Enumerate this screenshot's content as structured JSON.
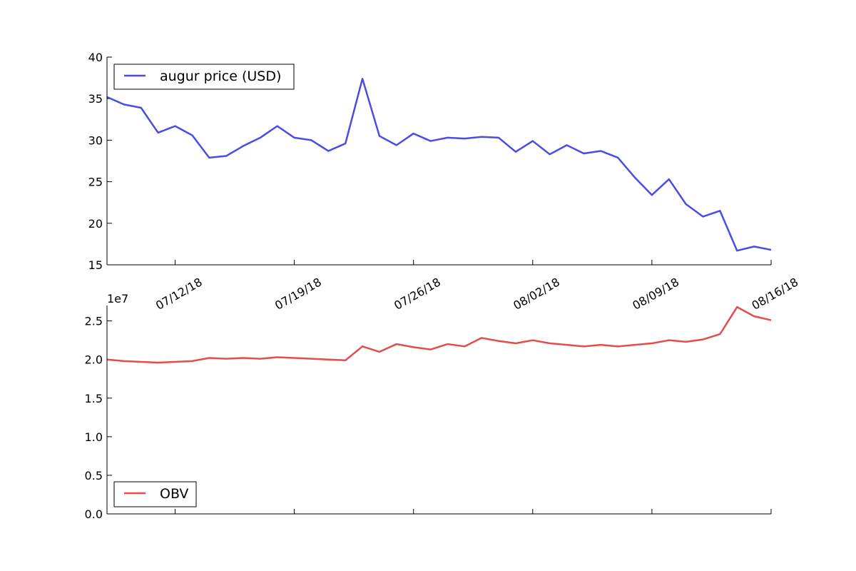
{
  "chart_data": [
    {
      "type": "line",
      "series": [
        {
          "name": "augur price (USD)",
          "color": "#4b4be8",
          "values": [
            35.2,
            34.3,
            33.9,
            30.9,
            31.7,
            30.6,
            27.9,
            28.1,
            29.3,
            30.3,
            31.7,
            30.3,
            30.0,
            28.7,
            29.6,
            37.4,
            30.5,
            29.4,
            30.8,
            29.9,
            30.3,
            30.2,
            30.4,
            30.3,
            28.6,
            29.9,
            28.3,
            29.4,
            28.4,
            28.7,
            27.9,
            25.5,
            23.4,
            25.3,
            22.3,
            20.8,
            21.5,
            16.7,
            17.2,
            16.8
          ]
        }
      ],
      "x_start_date": "07/08/18",
      "ylim": [
        15,
        40
      ],
      "yticks": [
        "15",
        "20",
        "25",
        "30",
        "35",
        "40"
      ],
      "xticks": [
        "07/12/18",
        "07/19/18",
        "07/26/18",
        "08/02/18",
        "08/09/18",
        "08/16/18"
      ],
      "legend": "top-left"
    },
    {
      "type": "line",
      "series": [
        {
          "name": "OBV",
          "color": "#e84b4b",
          "values": [
            2.0,
            1.98,
            1.97,
            1.96,
            1.97,
            1.98,
            2.02,
            2.01,
            2.02,
            2.01,
            2.03,
            2.02,
            2.01,
            2.0,
            1.99,
            2.17,
            2.1,
            2.2,
            2.16,
            2.13,
            2.2,
            2.17,
            2.28,
            2.24,
            2.21,
            2.25,
            2.21,
            2.19,
            2.17,
            2.19,
            2.17,
            2.19,
            2.21,
            2.25,
            2.23,
            2.26,
            2.33,
            2.68,
            2.56,
            2.51
          ]
        }
      ],
      "ylim": [
        0,
        2.7
      ],
      "yticks": [
        "0.0",
        "0.5",
        "1.0",
        "1.5",
        "2.0",
        "2.5"
      ],
      "yexponent": "1e7",
      "legend": "bottom-left"
    }
  ]
}
